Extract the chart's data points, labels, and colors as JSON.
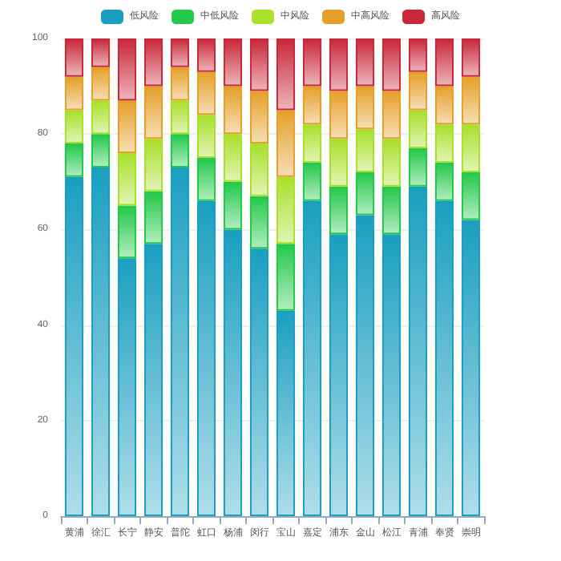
{
  "chart_data": {
    "type": "bar",
    "stacked": true,
    "categories": [
      "黄浦",
      "徐汇",
      "长宁",
      "静安",
      "普陀",
      "虹口",
      "杨浦",
      "闵行",
      "宝山",
      "嘉定",
      "浦东",
      "金山",
      "松江",
      "青浦",
      "奉贤",
      "崇明"
    ],
    "series": [
      {
        "name": "低风险",
        "color": "#1a9fc0",
        "values": [
          71,
          73,
          54,
          57,
          73,
          66,
          60,
          56,
          43,
          66,
          59,
          63,
          59,
          69,
          66,
          62
        ]
      },
      {
        "name": "中低风险",
        "color": "#22c94a",
        "values": [
          7,
          7,
          11,
          11,
          7,
          9,
          10,
          11,
          14,
          8,
          10,
          9,
          10,
          8,
          8,
          10
        ]
      },
      {
        "name": "中风险",
        "color": "#a8e02a",
        "values": [
          7,
          7,
          11,
          11,
          7,
          9,
          10,
          11,
          14,
          8,
          10,
          9,
          10,
          8,
          8,
          10
        ]
      },
      {
        "name": "中高风险",
        "color": "#e5a02a",
        "values": [
          7,
          7,
          11,
          11,
          7,
          9,
          10,
          11,
          14,
          8,
          10,
          9,
          10,
          8,
          8,
          10
        ]
      },
      {
        "name": "高风险",
        "color": "#c8283a",
        "values": [
          8,
          6,
          13,
          10,
          6,
          7,
          10,
          11,
          15,
          10,
          11,
          10,
          11,
          7,
          10,
          8
        ]
      }
    ],
    "ylim": [
      0,
      100
    ],
    "yticks": [
      0,
      20,
      40,
      60,
      80,
      100
    ],
    "grid": "y",
    "legend": "top"
  }
}
